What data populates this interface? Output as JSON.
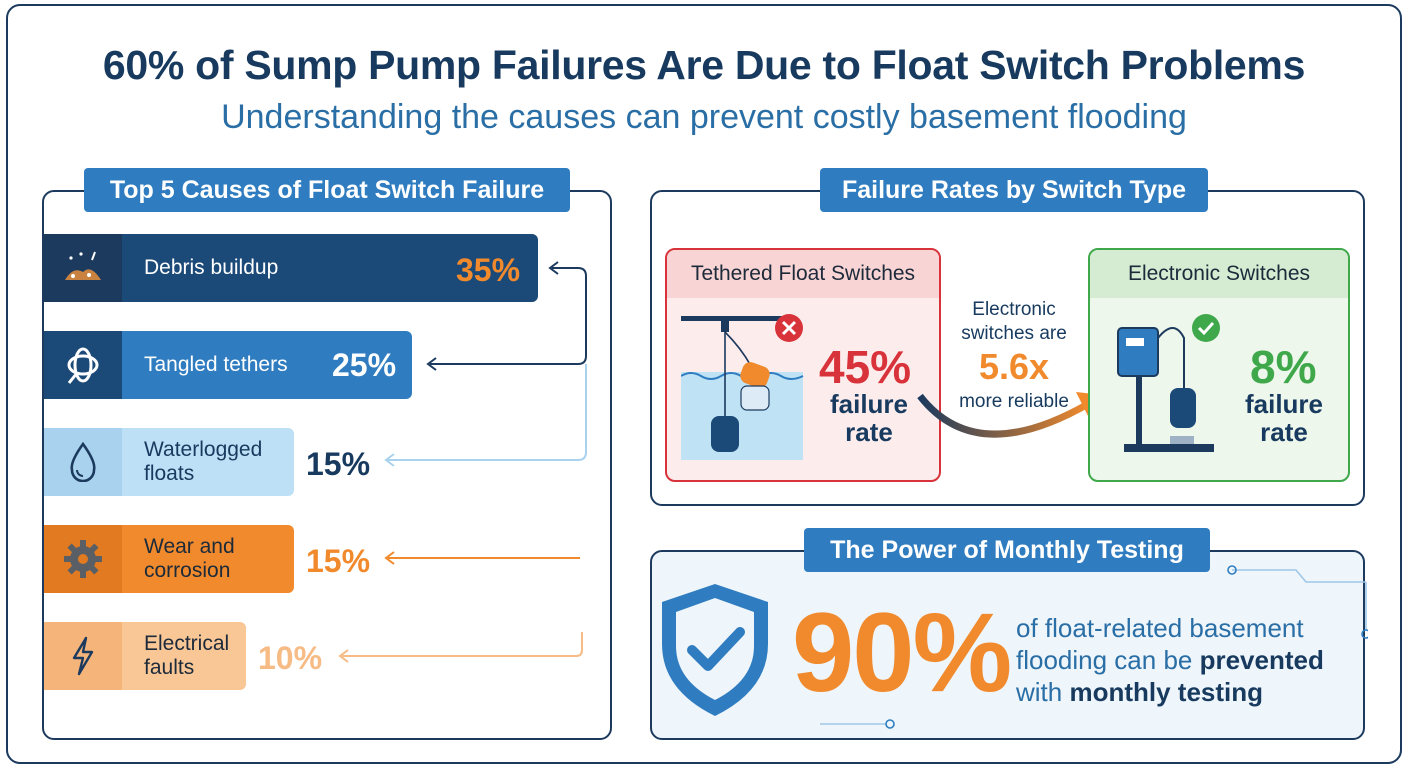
{
  "header": {
    "title": "60% of Sump Pump Failures Are Due to Float Switch Problems",
    "subtitle": "Understanding the causes can prevent costly basement flooding"
  },
  "causes": {
    "heading": "Top 5 Causes of Float Switch Failure",
    "items": [
      {
        "label": "Debris buildup",
        "value": "35%",
        "icon": "debris-icon"
      },
      {
        "label": "Tangled tethers",
        "value": "25%",
        "icon": "rope-icon"
      },
      {
        "label": "Waterlogged floats",
        "value": "15%",
        "icon": "water-drop-icon"
      },
      {
        "label": "Wear and corrosion",
        "value": "15%",
        "icon": "gear-icon"
      },
      {
        "label": "Electrical faults",
        "value": "10%",
        "icon": "lightning-icon"
      }
    ]
  },
  "rates": {
    "heading": "Failure Rates by Switch Type",
    "tethered": {
      "title": "Tethered Float Switches",
      "value": "45%",
      "caption_1": "failure",
      "caption_2": "rate",
      "status_icon": "x-circle-icon"
    },
    "comparison": {
      "line_1": "Electronic",
      "line_2": "switches are",
      "value": "5.6x",
      "line_3": "more reliable"
    },
    "electronic": {
      "title": "Electronic Switches",
      "value": "8%",
      "caption_1": "failure",
      "caption_2": "rate",
      "status_icon": "check-circle-icon"
    }
  },
  "testing": {
    "heading": "The Power of Monthly Testing",
    "value": "90%",
    "text_1": "of float-related basement",
    "text_2": "flooding can be ",
    "text_2_bold": "prevented",
    "text_3": "with ",
    "text_3_bold": "monthly testing"
  },
  "colors": {
    "navy": "#173a5e",
    "blue": "#2f7dc0",
    "orange": "#f08a2c",
    "red": "#d8323a",
    "green": "#3ea84a"
  }
}
